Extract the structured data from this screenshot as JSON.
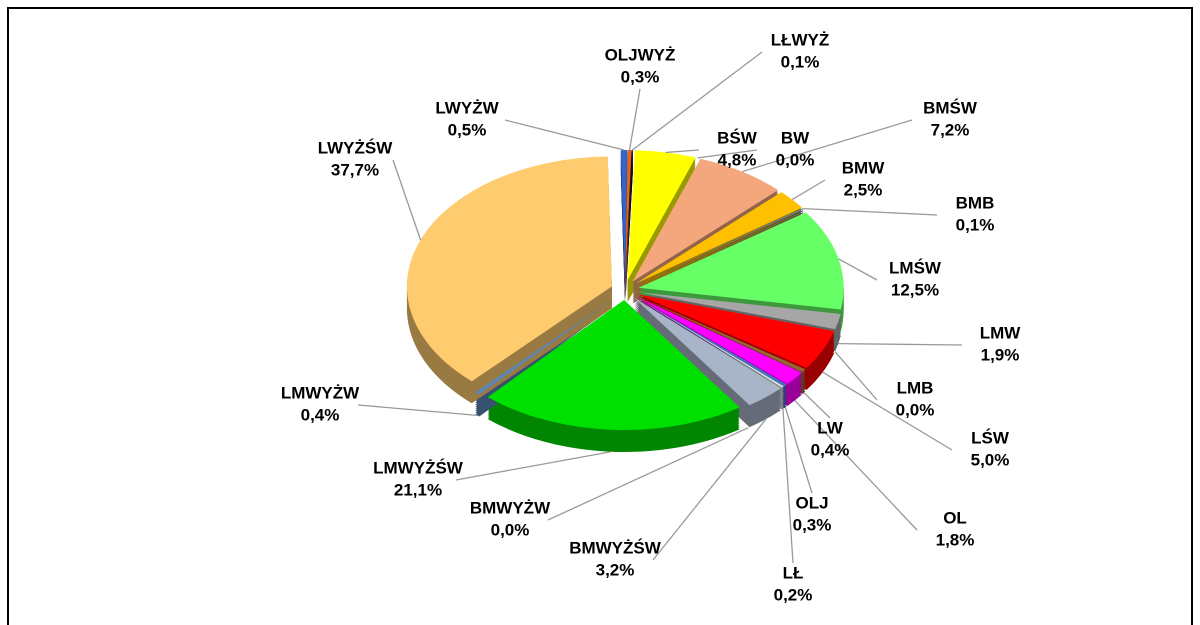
{
  "chart_data": {
    "type": "pie",
    "categories": [
      "LŁWYŻ",
      "BŚW",
      "BW",
      "BMŚW",
      "BMW",
      "BMB",
      "LMŚW",
      "LMW",
      "LMB",
      "LŚW",
      "LW",
      "OL",
      "OLJ",
      "LŁ",
      "BMWYŻŚW",
      "BMWYŻW",
      "LMWYŻŚW",
      "LMWYŻW",
      "LWYŻŚW",
      "LWYŻW",
      "OLJWYŻ"
    ],
    "values": [
      0.1,
      4.8,
      0.0,
      7.2,
      2.5,
      0.1,
      12.5,
      1.9,
      0.0,
      5.0,
      0.4,
      1.8,
      0.3,
      0.2,
      3.2,
      0.0,
      21.1,
      0.4,
      37.7,
      0.5,
      0.3
    ],
    "value_labels": [
      "0,1%",
      "4,8%",
      "0,0%",
      "7,2%",
      "2,5%",
      "0,1%",
      "12,5%",
      "1,9%",
      "0,0%",
      "5,0%",
      "0,4%",
      "1,8%",
      "0,3%",
      "0,2%",
      "3,2%",
      "0,0%",
      "21,1%",
      "0,4%",
      "37,7%",
      "0,5%",
      "0,3%"
    ],
    "colors": [
      "#111111",
      "#ffff00",
      "#ff9900",
      "#f4a67c",
      "#ffc000",
      "#4f81bd",
      "#66ff66",
      "#a6a6a6",
      "#7f3f00",
      "#ff0000",
      "#996633",
      "#ff00ff",
      "#4472c4",
      "#e0e0e0",
      "#a8b4c8",
      "#5a5a5a",
      "#00e000",
      "#5b87b8",
      "#fecb6e",
      "#3366cc",
      "#e6641e"
    ]
  }
}
